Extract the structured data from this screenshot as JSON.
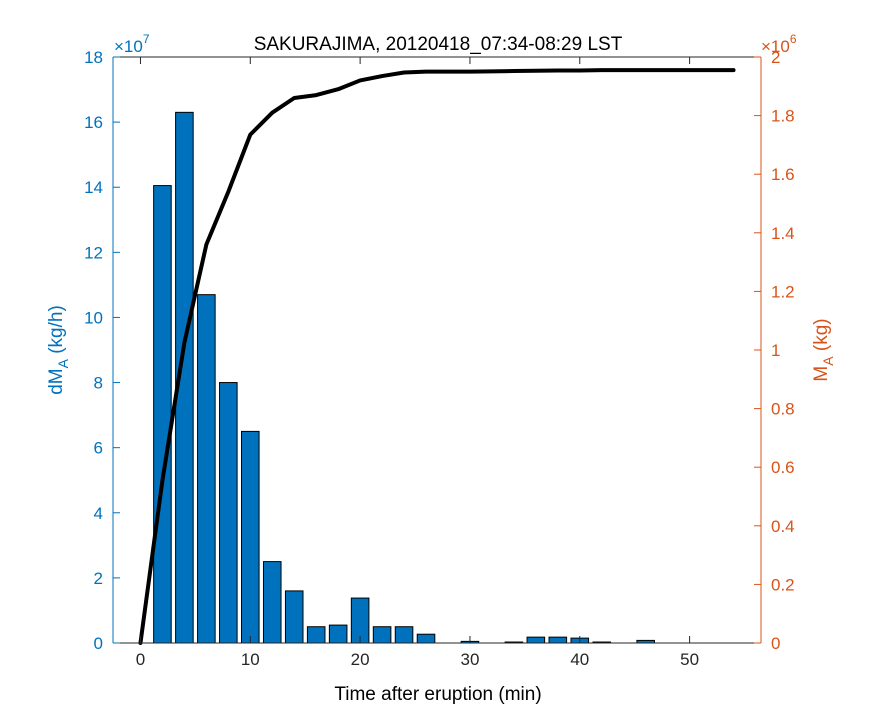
{
  "chart_data": {
    "type": "bar",
    "title": "SAKURAJIMA, 20120418_07:34-08:29 LST",
    "xlabel": "Time after eruption (min)",
    "ylabel_left": {
      "main": "dM",
      "sub": "A",
      "unit": " (kg/h)"
    },
    "ylabel_right": {
      "main": "M",
      "sub": "A",
      "unit": " (kg)"
    },
    "left_exponent": {
      "base": "×10",
      "power": "7"
    },
    "right_exponent": {
      "base": "×10",
      "power": "6"
    },
    "xlim": [
      -2.5,
      56.5
    ],
    "ylim_left": [
      0,
      18
    ],
    "ylim_right": [
      0,
      2
    ],
    "x_ticks": [
      "0",
      "10",
      "20",
      "30",
      "40",
      "50"
    ],
    "x_tick_values": [
      0,
      10,
      20,
      30,
      40,
      50
    ],
    "y_left_ticks": [
      "0",
      "2",
      "4",
      "6",
      "8",
      "10",
      "12",
      "14",
      "16",
      "18"
    ],
    "y_left_tick_values": [
      0,
      2,
      4,
      6,
      8,
      10,
      12,
      14,
      16,
      18
    ],
    "y_right_ticks": [
      "0",
      "0.2",
      "0.4",
      "0.6",
      "0.8",
      "1",
      "1.2",
      "1.4",
      "1.6",
      "1.8",
      "2"
    ],
    "y_right_tick_values": [
      0,
      0.2,
      0.4,
      0.6,
      0.8,
      1,
      1.2,
      1.4,
      1.6,
      1.8,
      2
    ],
    "series": [
      {
        "kind": "bar",
        "axis": "left",
        "x": [
          2,
          4,
          6,
          8,
          10,
          12,
          14,
          16,
          18,
          20,
          22,
          24,
          26,
          28,
          30,
          32,
          34,
          36,
          38,
          40,
          42,
          44,
          46,
          48,
          50,
          52,
          54
        ],
        "values": [
          14.05,
          16.3,
          10.7,
          8.0,
          6.5,
          2.5,
          1.6,
          0.5,
          0.55,
          1.38,
          0.5,
          0.5,
          0.27,
          0,
          0.05,
          0,
          0.03,
          0.18,
          0.18,
          0.15,
          0.03,
          0,
          0.08,
          0,
          0,
          0,
          0
        ]
      },
      {
        "kind": "line",
        "axis": "right",
        "x": [
          0,
          2,
          4,
          6,
          8,
          10,
          12,
          14,
          16,
          18,
          20,
          22,
          24,
          26,
          28,
          30,
          32,
          34,
          36,
          38,
          40,
          42,
          44,
          46,
          48,
          50,
          52,
          54
        ],
        "values": [
          0,
          0.555,
          1.025,
          1.36,
          1.54,
          1.735,
          1.81,
          1.86,
          1.87,
          1.89,
          1.92,
          1.935,
          1.947,
          1.95,
          1.95,
          1.95,
          1.951,
          1.952,
          1.953,
          1.954,
          1.954,
          1.955,
          1.955,
          1.955,
          1.955,
          1.955,
          1.955,
          1.955
        ]
      }
    ],
    "colors": {
      "bar_fill": "#0072BD",
      "left_axis": "#0072BD",
      "right_axis": "#D95319",
      "line": "#000000",
      "frame": "#262626"
    },
    "grid": false,
    "legend": "none"
  }
}
